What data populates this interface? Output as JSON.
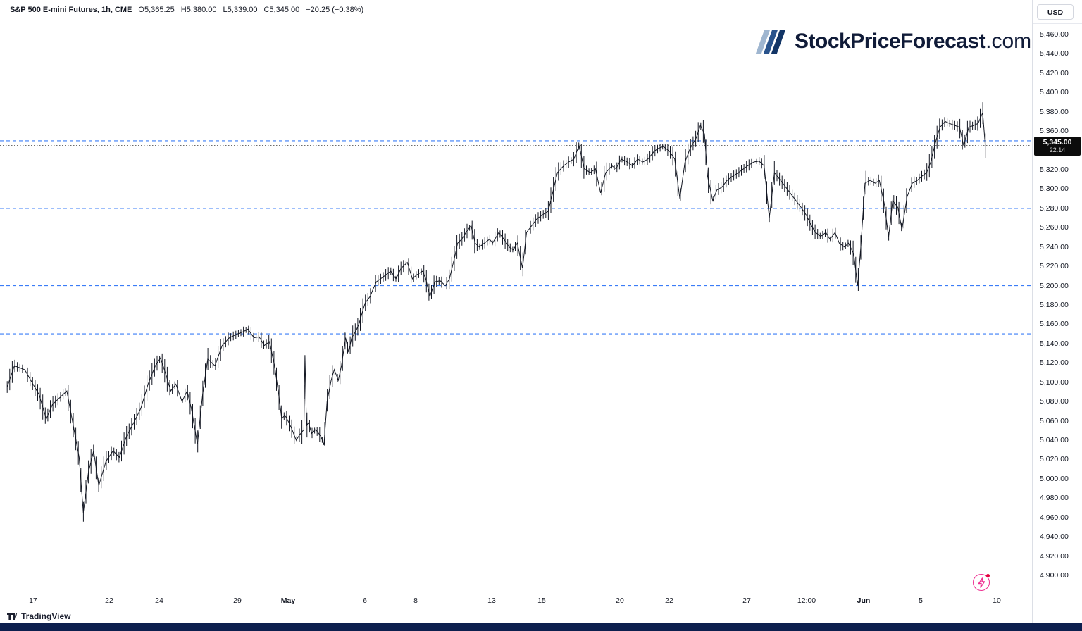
{
  "legend": {
    "title": "S&P 500 E-mini Futures, 1h, CME",
    "open": "O5,365.25",
    "high": "H5,380.00",
    "low": "L5,339.00",
    "close": "C5,345.00",
    "change": "−20.25 (−0.38%)"
  },
  "header": {
    "currency": "USD"
  },
  "watermark": {
    "brand": "StockPriceForecast",
    "suffix": ".com",
    "slash_colors": [
      "#9fb6d0",
      "#29538c",
      "#123566"
    ]
  },
  "price_badge": {
    "price": "5,345.00",
    "countdown": "22:14",
    "bg": "#0c0c0c"
  },
  "footer": {
    "brand": "TradingView"
  },
  "colors": {
    "bars": "#131722",
    "level_line": "#3b7df7",
    "price_line": "#3c3c3c",
    "axis_text": "#131722"
  },
  "chart_data": {
    "type": "candlestick",
    "title": "S&P 500 E-mini Futures",
    "interval": "1h",
    "exchange": "CME",
    "currency": "USD",
    "ohlc": {
      "open": 5365.25,
      "high": 5380.0,
      "low": 5339.0,
      "close": 5345.0
    },
    "change": -20.25,
    "change_pct": -0.38,
    "last_price": 5345.0,
    "y_range": [
      4900,
      5460
    ],
    "y_tick_step": 20,
    "y_ticks": [
      5460,
      5440,
      5420,
      5400,
      5380,
      5360,
      5340,
      5320,
      5300,
      5280,
      5260,
      5240,
      5220,
      5200,
      5180,
      5160,
      5140,
      5120,
      5100,
      5080,
      5060,
      5040,
      5020,
      5000,
      4980,
      4960,
      4940,
      4920,
      4900
    ],
    "horizontal_levels": [
      5350,
      5280,
      5200,
      5150
    ],
    "grid": false,
    "legend_position": "none",
    "x_ticks": [
      {
        "label": "17",
        "x": 0.032,
        "bold": false
      },
      {
        "label": "22",
        "x": 0.106,
        "bold": false
      },
      {
        "label": "24",
        "x": 0.155,
        "bold": false
      },
      {
        "label": "29",
        "x": 0.231,
        "bold": false
      },
      {
        "label": "May",
        "x": 0.28,
        "bold": true
      },
      {
        "label": "6",
        "x": 0.355,
        "bold": false
      },
      {
        "label": "8",
        "x": 0.404,
        "bold": false
      },
      {
        "label": "13",
        "x": 0.478,
        "bold": false
      },
      {
        "label": "15",
        "x": 0.527,
        "bold": false
      },
      {
        "label": "20",
        "x": 0.603,
        "bold": false
      },
      {
        "label": "22",
        "x": 0.651,
        "bold": false
      },
      {
        "label": "27",
        "x": 0.726,
        "bold": false
      },
      {
        "label": "12:00",
        "x": 0.784,
        "bold": false
      },
      {
        "label": "Jun",
        "x": 0.84,
        "bold": true
      },
      {
        "label": "5",
        "x": 0.895,
        "bold": false
      },
      {
        "label": "10",
        "x": 0.969,
        "bold": false
      }
    ],
    "series": [
      [
        0.007,
        5095
      ],
      [
        0.014,
        5117
      ],
      [
        0.024,
        5113
      ],
      [
        0.038,
        5087
      ],
      [
        0.045,
        5062
      ],
      [
        0.051,
        5077
      ],
      [
        0.058,
        5084
      ],
      [
        0.065,
        5091
      ],
      [
        0.072,
        5051
      ],
      [
        0.077,
        5022
      ],
      [
        0.081,
        4965
      ],
      [
        0.086,
        5007
      ],
      [
        0.091,
        5029
      ],
      [
        0.096,
        4993
      ],
      [
        0.103,
        5018
      ],
      [
        0.11,
        5029
      ],
      [
        0.116,
        5022
      ],
      [
        0.123,
        5044
      ],
      [
        0.13,
        5058
      ],
      [
        0.137,
        5073
      ],
      [
        0.144,
        5098
      ],
      [
        0.151,
        5117
      ],
      [
        0.156,
        5125
      ],
      [
        0.161,
        5109
      ],
      [
        0.166,
        5091
      ],
      [
        0.171,
        5098
      ],
      [
        0.177,
        5080
      ],
      [
        0.182,
        5091
      ],
      [
        0.186,
        5073
      ],
      [
        0.192,
        5036
      ],
      [
        0.197,
        5087
      ],
      [
        0.202,
        5124
      ],
      [
        0.209,
        5117
      ],
      [
        0.216,
        5138
      ],
      [
        0.223,
        5146
      ],
      [
        0.231,
        5150
      ],
      [
        0.236,
        5152
      ],
      [
        0.241,
        5155
      ],
      [
        0.247,
        5146
      ],
      [
        0.252,
        5147
      ],
      [
        0.257,
        5138
      ],
      [
        0.262,
        5142
      ],
      [
        0.267,
        5117
      ],
      [
        0.271,
        5087
      ],
      [
        0.274,
        5062
      ],
      [
        0.277,
        5066
      ],
      [
        0.281,
        5058
      ],
      [
        0.284,
        5051
      ],
      [
        0.288,
        5040
      ],
      [
        0.291,
        5045
      ],
      [
        0.2955,
        5051
      ],
      [
        0.2965,
        5128
      ],
      [
        0.298,
        5055
      ],
      [
        0.3,
        5058
      ],
      [
        0.303,
        5047
      ],
      [
        0.307,
        5051
      ],
      [
        0.312,
        5044
      ],
      [
        0.315,
        5035
      ],
      [
        0.318,
        5080
      ],
      [
        0.322,
        5102
      ],
      [
        0.325,
        5113
      ],
      [
        0.329,
        5102
      ],
      [
        0.332,
        5117
      ],
      [
        0.336,
        5146
      ],
      [
        0.339,
        5131
      ],
      [
        0.342,
        5146
      ],
      [
        0.346,
        5153
      ],
      [
        0.349,
        5160
      ],
      [
        0.353,
        5175
      ],
      [
        0.355,
        5182
      ],
      [
        0.36,
        5189
      ],
      [
        0.363,
        5197
      ],
      [
        0.366,
        5204
      ],
      [
        0.37,
        5207
      ],
      [
        0.375,
        5211
      ],
      [
        0.38,
        5215
      ],
      [
        0.385,
        5207
      ],
      [
        0.39,
        5218
      ],
      [
        0.396,
        5224
      ],
      [
        0.401,
        5207
      ],
      [
        0.405,
        5211
      ],
      [
        0.411,
        5215
      ],
      [
        0.414,
        5207
      ],
      [
        0.418,
        5189
      ],
      [
        0.423,
        5204
      ],
      [
        0.428,
        5205
      ],
      [
        0.433,
        5200
      ],
      [
        0.437,
        5207
      ],
      [
        0.442,
        5229
      ],
      [
        0.445,
        5244
      ],
      [
        0.449,
        5248
      ],
      [
        0.453,
        5255
      ],
      [
        0.458,
        5262
      ],
      [
        0.462,
        5244
      ],
      [
        0.466,
        5240
      ],
      [
        0.471,
        5244
      ],
      [
        0.476,
        5248
      ],
      [
        0.479,
        5244
      ],
      [
        0.485,
        5255
      ],
      [
        0.49,
        5248
      ],
      [
        0.495,
        5240
      ],
      [
        0.499,
        5237
      ],
      [
        0.503,
        5244
      ],
      [
        0.508,
        5218
      ],
      [
        0.512,
        5255
      ],
      [
        0.517,
        5262
      ],
      [
        0.522,
        5269
      ],
      [
        0.527,
        5273
      ],
      [
        0.533,
        5277
      ],
      [
        0.538,
        5299
      ],
      [
        0.542,
        5317
      ],
      [
        0.548,
        5324
      ],
      [
        0.553,
        5328
      ],
      [
        0.558,
        5331
      ],
      [
        0.563,
        5345
      ],
      [
        0.568,
        5321
      ],
      [
        0.574,
        5317
      ],
      [
        0.579,
        5321
      ],
      [
        0.584,
        5296
      ],
      [
        0.589,
        5317
      ],
      [
        0.595,
        5324
      ],
      [
        0.599,
        5321
      ],
      [
        0.604,
        5331
      ],
      [
        0.61,
        5328
      ],
      [
        0.615,
        5324
      ],
      [
        0.62,
        5331
      ],
      [
        0.625,
        5328
      ],
      [
        0.63,
        5331
      ],
      [
        0.636,
        5339
      ],
      [
        0.64,
        5342
      ],
      [
        0.645,
        5344
      ],
      [
        0.651,
        5339
      ],
      [
        0.656,
        5331
      ],
      [
        0.661,
        5290
      ],
      [
        0.666,
        5328
      ],
      [
        0.671,
        5342
      ],
      [
        0.677,
        5353
      ],
      [
        0.681,
        5366
      ],
      [
        0.685,
        5357
      ],
      [
        0.688,
        5313
      ],
      [
        0.693,
        5288
      ],
      [
        0.697,
        5299
      ],
      [
        0.702,
        5302
      ],
      [
        0.707,
        5309
      ],
      [
        0.712,
        5313
      ],
      [
        0.718,
        5317
      ],
      [
        0.723,
        5321
      ],
      [
        0.727,
        5324
      ],
      [
        0.733,
        5328
      ],
      [
        0.738,
        5329
      ],
      [
        0.743,
        5324
      ],
      [
        0.748,
        5270
      ],
      [
        0.753,
        5317
      ],
      [
        0.759,
        5309
      ],
      [
        0.764,
        5302
      ],
      [
        0.769,
        5295
      ],
      [
        0.774,
        5288
      ],
      [
        0.779,
        5281
      ],
      [
        0.784,
        5273
      ],
      [
        0.789,
        5262
      ],
      [
        0.793,
        5255
      ],
      [
        0.798,
        5251
      ],
      [
        0.803,
        5255
      ],
      [
        0.807,
        5248
      ],
      [
        0.812,
        5255
      ],
      [
        0.816,
        5244
      ],
      [
        0.821,
        5240
      ],
      [
        0.825,
        5244
      ],
      [
        0.83,
        5233
      ],
      [
        0.834,
        5200
      ],
      [
        0.837,
        5240
      ],
      [
        0.841,
        5306
      ],
      [
        0.846,
        5309
      ],
      [
        0.851,
        5306
      ],
      [
        0.855,
        5309
      ],
      [
        0.86,
        5284
      ],
      [
        0.864,
        5250
      ],
      [
        0.868,
        5288
      ],
      [
        0.873,
        5281
      ],
      [
        0.877,
        5258
      ],
      [
        0.882,
        5292
      ],
      [
        0.887,
        5306
      ],
      [
        0.892,
        5309
      ],
      [
        0.896,
        5313
      ],
      [
        0.901,
        5317
      ],
      [
        0.905,
        5328
      ],
      [
        0.91,
        5350
      ],
      [
        0.914,
        5364
      ],
      [
        0.919,
        5370
      ],
      [
        0.923,
        5368
      ],
      [
        0.928,
        5366
      ],
      [
        0.933,
        5364
      ],
      [
        0.937,
        5345
      ],
      [
        0.942,
        5364
      ],
      [
        0.947,
        5366
      ],
      [
        0.951,
        5368
      ],
      [
        0.9555,
        5379
      ],
      [
        0.958,
        5345
      ]
    ]
  }
}
